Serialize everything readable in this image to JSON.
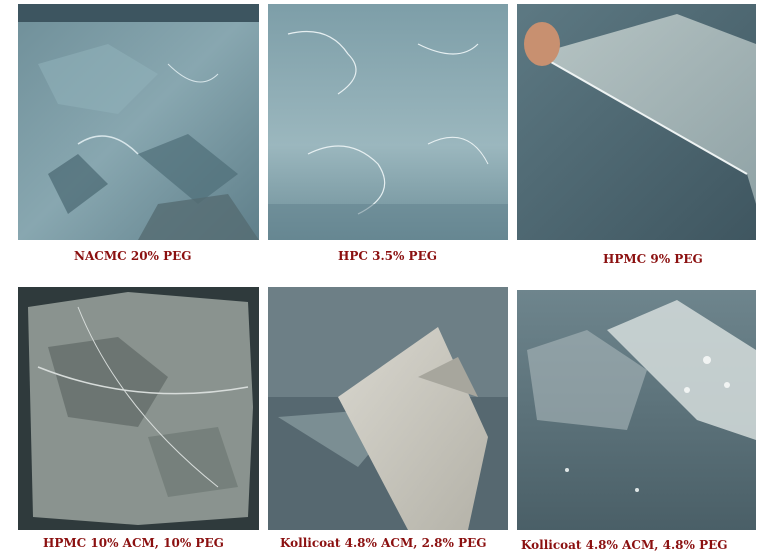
{
  "panels": [
    {
      "caption": "NACMC 20% PEG"
    },
    {
      "caption": "HPC 3.5%  PEG"
    },
    {
      "caption": "HPMC  9% PEG"
    },
    {
      "caption": "HPMC 10% ACM, 10%  PEG"
    },
    {
      "caption": "Kollicoat  4.8% ACM, 2.8%  PEG"
    },
    {
      "caption": "Kollicoat 4.8% ACM, 4.8% PEG"
    }
  ],
  "colors": {
    "caption": "#8b1010",
    "film_blue": "#7e9da6",
    "film_grey": "#9aa0a0"
  }
}
